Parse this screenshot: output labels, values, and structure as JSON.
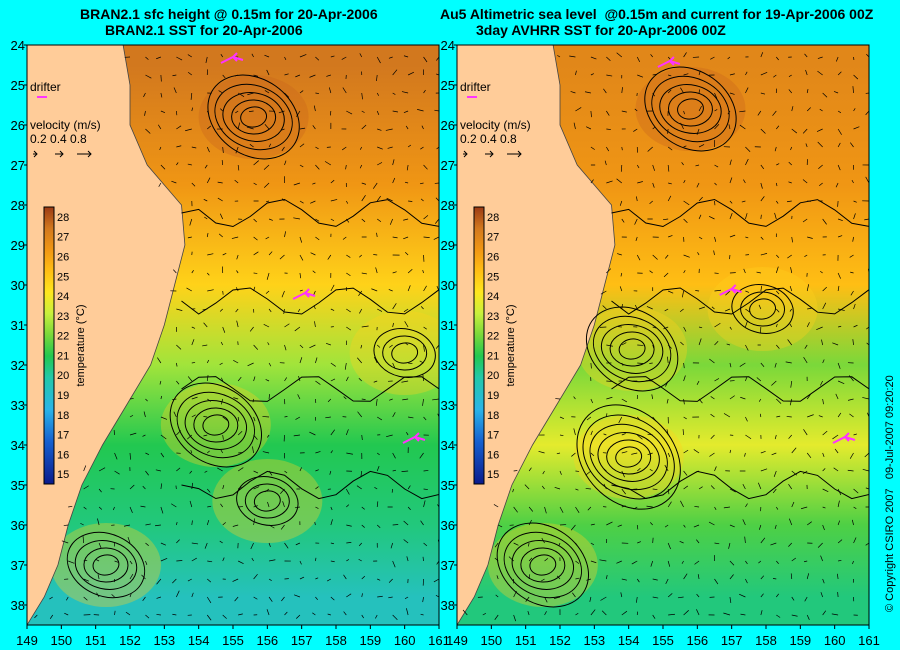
{
  "left": {
    "title_line1": "BRAN2.1 sfc height @ 0.15m for 20-Apr-2006",
    "title_line2": "BRAN2.1 SST for 20-Apr-2006"
  },
  "right": {
    "title_line1": "Au5 Altimetric sea level  @0.15m and current for 19-Apr-2006 00Z",
    "title_line2": "3day AVHRR SST for 20-Apr-2006 00Z"
  },
  "legend": {
    "drifter": "drifter",
    "velocity_title": "velocity (m/s)",
    "velocity_scale": "0.2 0.4 0.8",
    "colorbar_label": "temperature (°C)"
  },
  "copyright": "© Copyright CSIRO 2007   09-Jul-2007 09:20:20",
  "colors": {
    "background": "#00ffff",
    "land": "#ffcc99",
    "drifter": "#ff33ff"
  },
  "chart_data": [
    {
      "type": "heatmap",
      "title": "BRAN2.1 sfc height @ 0.15m for 20-Apr-2006 / BRAN2.1 SST for 20-Apr-2006",
      "x_ticks": [
        149,
        150,
        151,
        152,
        153,
        154,
        155,
        156,
        157,
        158,
        159,
        160,
        161
      ],
      "y_ticks": [
        24,
        25,
        26,
        27,
        28,
        29,
        30,
        31,
        32,
        33,
        34,
        35,
        36,
        37,
        38
      ],
      "xlim": [
        149,
        161
      ],
      "ylim": [
        24,
        38.5
      ],
      "colorbar": {
        "label": "temperature (°C)",
        "ticks": [
          15,
          16,
          17,
          18,
          19,
          20,
          21,
          22,
          23,
          24,
          25,
          26,
          27,
          28
        ],
        "range": [
          15,
          28
        ]
      },
      "sst_zones": [
        {
          "lat": 24.5,
          "temp": 27.0
        },
        {
          "lat": 27.5,
          "temp": 26.0
        },
        {
          "lat": 30.0,
          "temp": 24.5
        },
        {
          "lat": 32.0,
          "temp": 22.5
        },
        {
          "lat": 34.0,
          "temp": 21.0
        },
        {
          "lat": 36.0,
          "temp": 20.5
        },
        {
          "lat": 37.8,
          "temp": 19.5
        }
      ],
      "eddies": [
        {
          "lon": 155.6,
          "lat": 25.8,
          "n_contours": 5
        },
        {
          "lon": 154.5,
          "lat": 33.5,
          "n_contours": 5
        },
        {
          "lon": 151.3,
          "lat": 37.0,
          "n_contours": 4
        },
        {
          "lon": 160.0,
          "lat": 31.7,
          "n_contours": 3
        },
        {
          "lon": 156.0,
          "lat": 35.4,
          "n_contours": 3
        }
      ],
      "drifters": [
        {
          "lon": 155.0,
          "lat": 24.3
        },
        {
          "lon": 157.1,
          "lat": 30.2
        },
        {
          "lon": 160.3,
          "lat": 33.8
        }
      ]
    },
    {
      "type": "heatmap",
      "title": "Au5 Altimetric sea level  @0.15m and current for 19-Apr-2006 00Z / 3day AVHRR SST for 20-Apr-2006 00Z",
      "x_ticks": [
        149,
        150,
        151,
        152,
        153,
        154,
        155,
        156,
        157,
        158,
        159,
        160,
        161
      ],
      "y_ticks": [
        24,
        25,
        26,
        27,
        28,
        29,
        30,
        31,
        32,
        33,
        34,
        35,
        36,
        37,
        38
      ],
      "xlim": [
        149,
        161
      ],
      "ylim": [
        24,
        38.5
      ],
      "colorbar": {
        "label": "temperature (°C)",
        "ticks": [
          15,
          16,
          17,
          18,
          19,
          20,
          21,
          22,
          23,
          24,
          25,
          26,
          27,
          28
        ],
        "range": [
          15,
          28
        ]
      },
      "sst_zones": [
        {
          "lat": 24.5,
          "temp": 26.5
        },
        {
          "lat": 27.5,
          "temp": 26.0
        },
        {
          "lat": 30.0,
          "temp": 25.0
        },
        {
          "lat": 32.0,
          "temp": 22.0
        },
        {
          "lat": 34.0,
          "temp": 23.5
        },
        {
          "lat": 36.0,
          "temp": 21.5
        },
        {
          "lat": 37.8,
          "temp": 20.5
        }
      ],
      "eddies": [
        {
          "lon": 155.8,
          "lat": 25.6,
          "n_contours": 5
        },
        {
          "lon": 154.0,
          "lat": 34.3,
          "n_contours": 6
        },
        {
          "lon": 151.5,
          "lat": 37.0,
          "n_contours": 5
        },
        {
          "lon": 154.1,
          "lat": 31.6,
          "n_contours": 5
        },
        {
          "lon": 157.9,
          "lat": 30.6,
          "n_contours": 3
        }
      ],
      "drifters": [
        {
          "lon": 155.2,
          "lat": 24.4
        },
        {
          "lon": 157.0,
          "lat": 30.1
        },
        {
          "lon": 160.3,
          "lat": 33.8
        }
      ]
    }
  ]
}
